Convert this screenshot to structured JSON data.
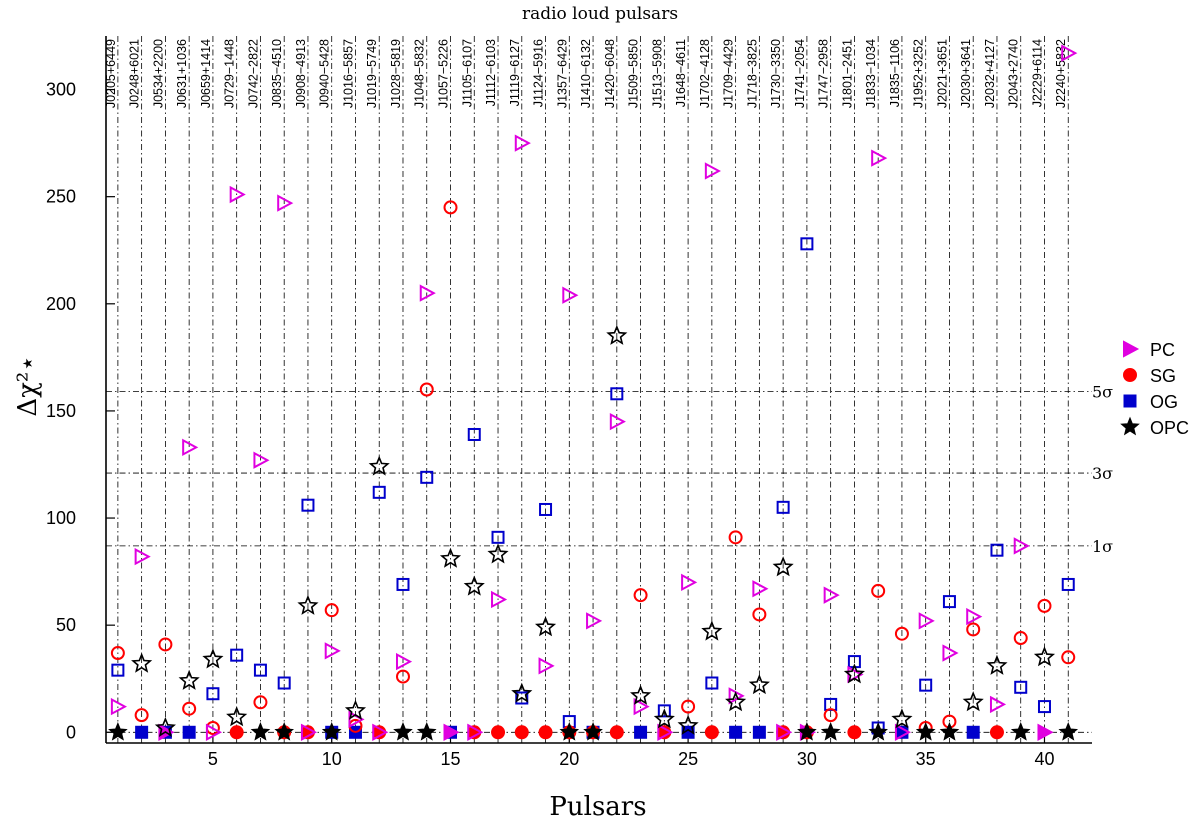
{
  "chart_data": {
    "type": "scatter",
    "title": "radio loud pulsars",
    "xlabel": "Pulsars",
    "ylabel": "Δχ²⋆",
    "xlim": [
      0.5,
      42
    ],
    "ylim": [
      -5,
      325
    ],
    "xticks": [
      5,
      10,
      15,
      20,
      25,
      30,
      35,
      40
    ],
    "yticks": [
      0,
      50,
      100,
      150,
      200,
      250,
      300
    ],
    "grid": "vertical dash-dot lines at each pulsar",
    "legend_position": "right",
    "pulsar_names": [
      "J0205+6449",
      "J0248+6021",
      "J0534+2200",
      "J0631+1036",
      "J0659+1414",
      "J0729−1448",
      "J0742−2822",
      "J0835−4510",
      "J0908−4913",
      "J0940−5428",
      "J1016−5857",
      "J1019−5749",
      "J1028−5819",
      "J1048−5832",
      "J1057−5226",
      "J1105−6107",
      "J1112−6103",
      "J1119−6127",
      "J1124−5916",
      "J1357−6429",
      "J1410−6132",
      "J1420−6048",
      "J1509−5850",
      "J1513−5908",
      "J1648−4611",
      "J1702−4128",
      "J1709−4429",
      "J1718−3825",
      "J1730−3350",
      "J1741−2054",
      "J1747−2958",
      "J1801−2451",
      "J1833−1034",
      "J1835−1106",
      "J1952+3252",
      "J2021+3651",
      "J2030+3641",
      "J2032+4127",
      "J2043+2740",
      "J2229+6114",
      "J2240+5832"
    ],
    "reference_lines": [
      {
        "label": "1σ",
        "y": 87
      },
      {
        "label": "3σ",
        "y": 121
      },
      {
        "label": "5σ",
        "y": 159
      }
    ],
    "series": [
      {
        "name": "PC",
        "marker": "triangle-right",
        "color": "#e000e0",
        "values": [
          12,
          82,
          0,
          133,
          0,
          251,
          127,
          247,
          0,
          38,
          6,
          0,
          33,
          205,
          0,
          0,
          62,
          275,
          31,
          204,
          52,
          145,
          12,
          0,
          70,
          262,
          17,
          67,
          0,
          0,
          64,
          27,
          268,
          0,
          52,
          37,
          54,
          13,
          87,
          0,
          317
        ]
      },
      {
        "name": "SG",
        "marker": "circle",
        "color": "#ff0000",
        "values": [
          37,
          8,
          41,
          11,
          2,
          0,
          14,
          0,
          0,
          57,
          3,
          0,
          26,
          160,
          245,
          0,
          0,
          0,
          0,
          0,
          0,
          0,
          64,
          0,
          12,
          0,
          91,
          55,
          0,
          0,
          8,
          0,
          66,
          46,
          2,
          5,
          48,
          0,
          44,
          59,
          35
        ]
      },
      {
        "name": "OG",
        "marker": "square",
        "color": "#0000cc",
        "values": [
          29,
          0,
          0,
          0,
          18,
          36,
          29,
          23,
          106,
          0,
          0,
          112,
          69,
          119,
          0,
          139,
          91,
          16,
          104,
          5,
          0,
          158,
          0,
          10,
          0,
          23,
          0,
          0,
          105,
          228,
          13,
          33,
          2,
          0,
          22,
          61,
          0,
          85,
          21,
          12,
          69
        ]
      },
      {
        "name": "OPC",
        "marker": "star",
        "color": "#000000",
        "values": [
          0,
          32,
          2,
          24,
          34,
          7,
          0,
          0,
          59,
          0,
          10,
          124,
          0,
          0,
          81,
          68,
          83,
          18,
          49,
          0,
          0,
          185,
          17,
          6,
          3,
          47,
          14,
          22,
          77,
          0,
          0,
          27,
          0,
          6,
          0,
          0,
          14,
          31,
          0,
          35,
          0
        ]
      }
    ],
    "filled_markers": {
      "PC": [
        false,
        false,
        true,
        false,
        false,
        false,
        false,
        false,
        false,
        false,
        false,
        false,
        false,
        false,
        true,
        false,
        false,
        false,
        false,
        false,
        false,
        false,
        false,
        false,
        false,
        false,
        false,
        false,
        false,
        true,
        false,
        false,
        false,
        false,
        false,
        false,
        false,
        false,
        false,
        true,
        false
      ],
      "SG": [
        false,
        false,
        false,
        false,
        false,
        true,
        false,
        true,
        true,
        false,
        false,
        true,
        false,
        false,
        false,
        true,
        true,
        true,
        true,
        true,
        true,
        true,
        false,
        true,
        false,
        true,
        false,
        false,
        true,
        true,
        false,
        true,
        false,
        false,
        false,
        false,
        false,
        true,
        false,
        false,
        false
      ],
      "OG": [
        false,
        true,
        true,
        true,
        false,
        false,
        false,
        false,
        false,
        true,
        true,
        false,
        false,
        false,
        true,
        false,
        false,
        false,
        false,
        false,
        true,
        false,
        true,
        false,
        true,
        false,
        true,
        true,
        false,
        false,
        false,
        false,
        false,
        true,
        false,
        false,
        true,
        false,
        false,
        false,
        false
      ],
      "OPC": [
        true,
        false,
        false,
        false,
        false,
        false,
        true,
        true,
        false,
        true,
        false,
        false,
        true,
        true,
        false,
        false,
        false,
        false,
        false,
        true,
        true,
        false,
        false,
        false,
        false,
        false,
        false,
        false,
        false,
        true,
        true,
        false,
        true,
        false,
        true,
        true,
        false,
        false,
        true,
        false,
        true
      ]
    }
  }
}
